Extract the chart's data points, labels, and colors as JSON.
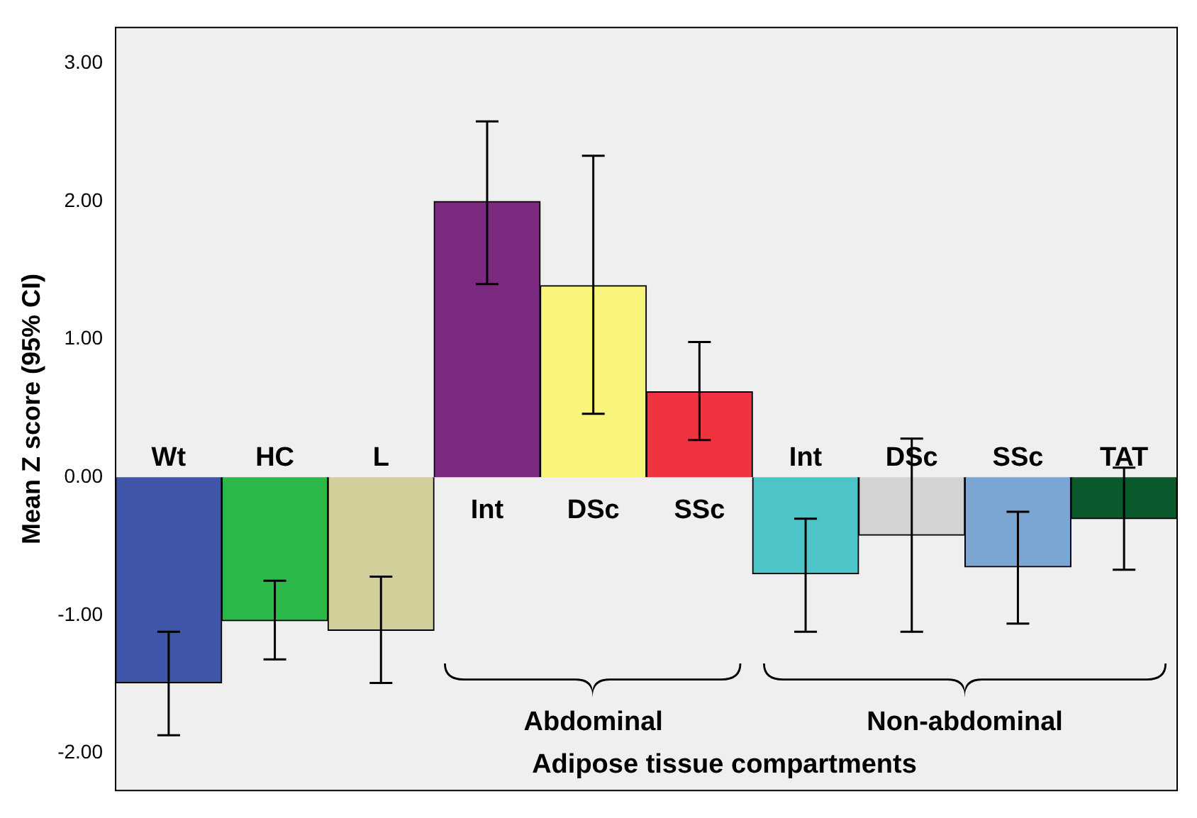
{
  "chart_data": {
    "type": "bar",
    "ylabel": "Mean Z score (95% CI)",
    "xlabel": "Adipose tissue compartments",
    "categories": [
      "Wt",
      "HC",
      "L",
      "Int",
      "DSc",
      "SSc",
      "Int",
      "DSc",
      "SSc",
      "TAT"
    ],
    "values": [
      -1.49,
      -1.04,
      -1.11,
      2.0,
      1.39,
      0.62,
      -0.7,
      -0.42,
      -0.65,
      -0.3
    ],
    "colors": [
      "#3f56a8",
      "#2db84a",
      "#d3cf9a",
      "#7b2a80",
      "#f8f57a",
      "#ef3340",
      "#4cc4c8",
      "#d3d3d3",
      "#7ba6d4",
      "#0b5a2e"
    ],
    "errors": [
      [
        -1.87,
        -1.12
      ],
      [
        -1.32,
        -0.75
      ],
      [
        -1.49,
        -0.72
      ],
      [
        1.4,
        2.58
      ],
      [
        0.46,
        2.33
      ],
      [
        0.27,
        0.98
      ],
      [
        -1.12,
        -0.3
      ],
      [
        -1.12,
        0.28
      ],
      [
        -1.06,
        -0.25
      ],
      [
        -0.67,
        0.07
      ]
    ],
    "annotations": [
      "Abdominal",
      "Non-abdominal"
    ],
    "ylim": [
      -2.27,
      3.26
    ],
    "yticks": [
      {
        "value": -2,
        "label": "-2.00"
      },
      {
        "value": -1,
        "label": "-1.00"
      },
      {
        "value": 0,
        "label": "0.00"
      },
      {
        "value": 1,
        "label": "1.00"
      },
      {
        "value": 2,
        "label": "2.00"
      },
      {
        "value": 3,
        "label": "3.00"
      }
    ],
    "grid": false,
    "legend": false
  }
}
